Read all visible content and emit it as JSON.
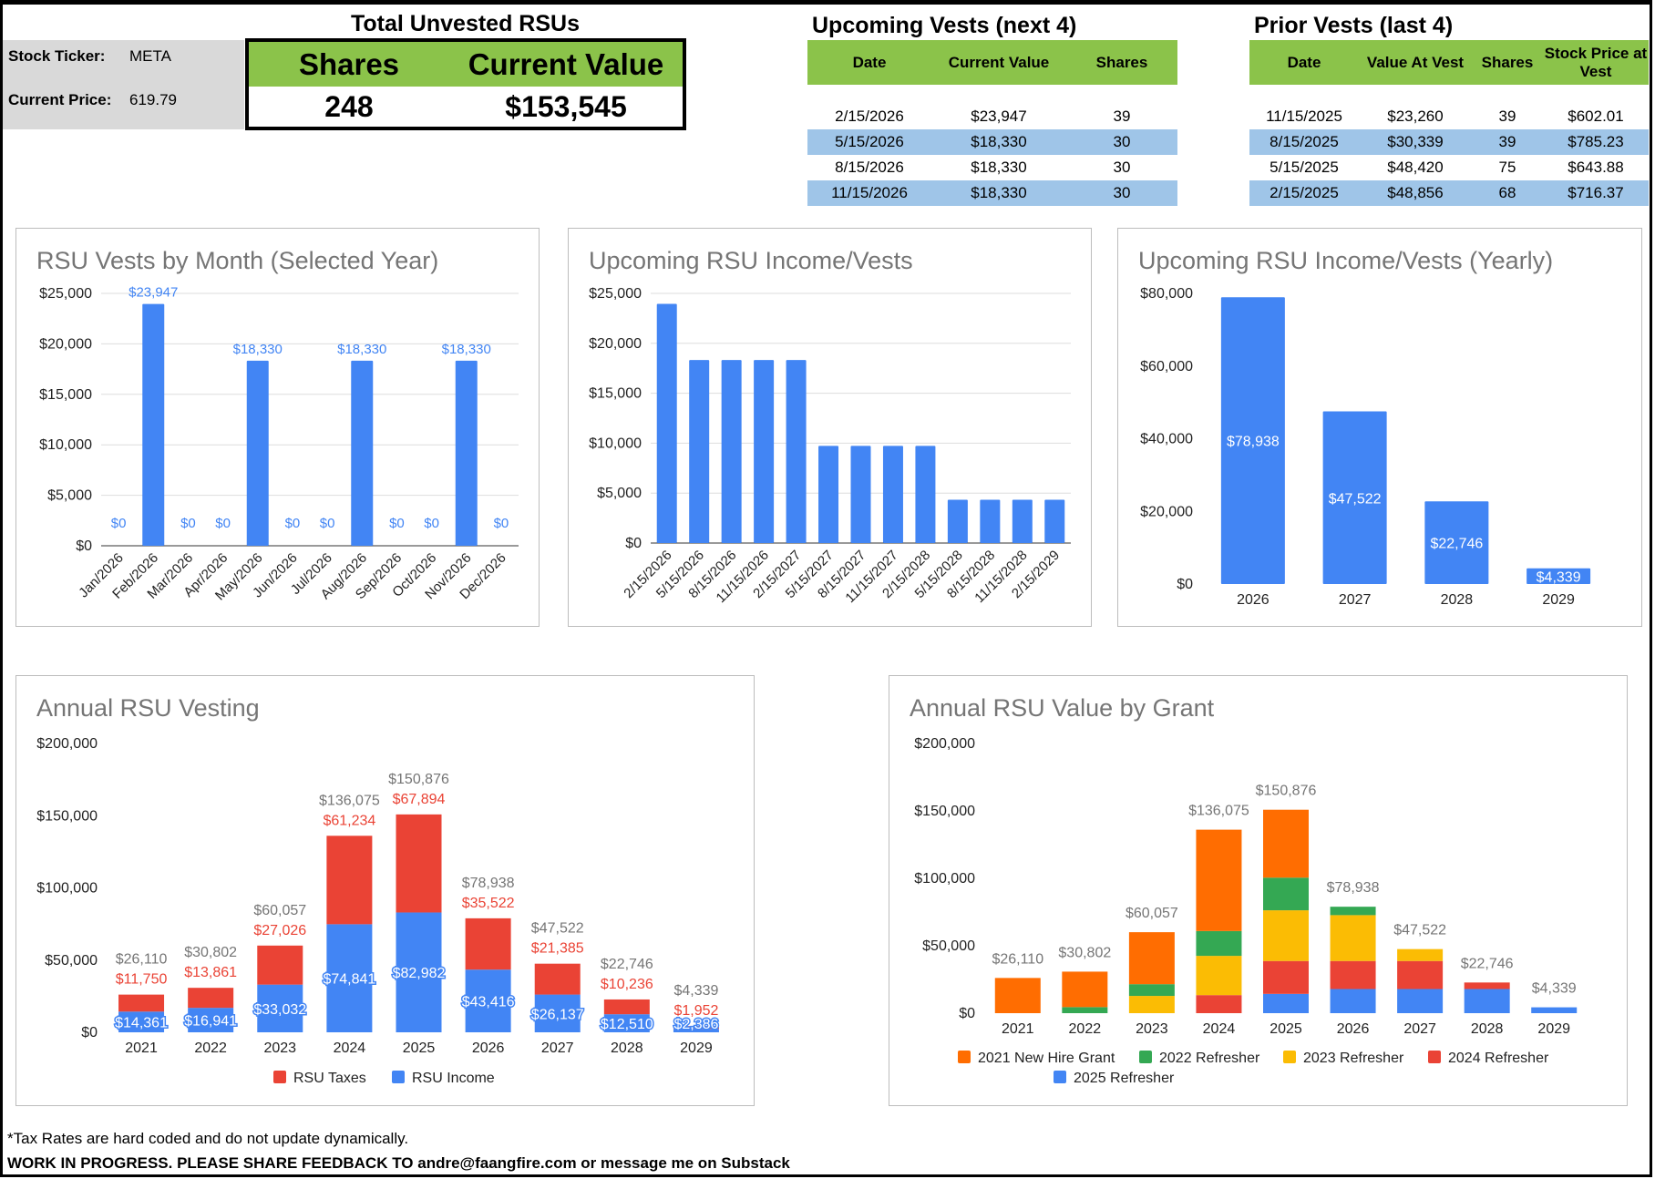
{
  "info": {
    "ticker_label": "Stock Ticker:",
    "ticker": "META",
    "price_label": "Current Price:",
    "price": "619.79"
  },
  "summary": {
    "title": "Total Unvested RSUs",
    "shares_label": "Shares",
    "value_label": "Current Value",
    "shares": "248",
    "value": "$153,545"
  },
  "upcoming": {
    "title": "Upcoming Vests (next 4)",
    "headers": [
      "Date",
      "Current Value",
      "Shares"
    ],
    "rows": [
      [
        "2/15/2026",
        "$23,947",
        "39"
      ],
      [
        "5/15/2026",
        "$18,330",
        "30"
      ],
      [
        "8/15/2026",
        "$18,330",
        "30"
      ],
      [
        "11/15/2026",
        "$18,330",
        "30"
      ]
    ]
  },
  "prior": {
    "title": "Prior Vests (last 4)",
    "headers": [
      "Date",
      "Value At Vest",
      "Shares",
      "Stock Price at Vest"
    ],
    "rows": [
      [
        "11/15/2025",
        "$23,260",
        "39",
        "$602.01"
      ],
      [
        "8/15/2025",
        "$30,339",
        "39",
        "$785.23"
      ],
      [
        "5/15/2025",
        "$48,420",
        "75",
        "$643.88"
      ],
      [
        "2/15/2025",
        "$48,856",
        "68",
        "$716.37"
      ]
    ]
  },
  "chart_data": [
    {
      "id": "monthly",
      "type": "bar",
      "title": "RSU Vests by Month (Selected Year)",
      "ylim": [
        0,
        25000
      ],
      "yticks": [
        "$0",
        "$5,000",
        "$10,000",
        "$15,000",
        "$20,000",
        "$25,000"
      ],
      "categories": [
        "Jan/2026",
        "Feb/2026",
        "Mar/2026",
        "Apr/2026",
        "May/2026",
        "Jun/2026",
        "Jul/2026",
        "Aug/2026",
        "Sep/2026",
        "Oct/2026",
        "Nov/2026",
        "Dec/2026"
      ],
      "values": [
        0,
        23947,
        0,
        0,
        18330,
        0,
        0,
        18330,
        0,
        0,
        18330,
        0
      ],
      "labels": [
        "$0",
        "$23,947",
        "$0",
        "$0",
        "$18,330",
        "$0",
        "$0",
        "$18,330",
        "$0",
        "$0",
        "$18,330",
        "$0"
      ],
      "grid": true,
      "color": "#4285f4"
    },
    {
      "id": "upcoming",
      "type": "bar",
      "title": "Upcoming RSU Income/Vests",
      "ylim": [
        0,
        25000
      ],
      "yticks": [
        "$0",
        "$5,000",
        "$10,000",
        "$15,000",
        "$20,000",
        "$25,000"
      ],
      "categories": [
        "2/15/2026",
        "5/15/2026",
        "8/15/2026",
        "11/15/2026",
        "2/15/2027",
        "5/15/2027",
        "8/15/2027",
        "11/15/2027",
        "2/15/2028",
        "5/15/2028",
        "8/15/2028",
        "11/15/2028",
        "2/15/2029"
      ],
      "values": [
        23947,
        18330,
        18330,
        18330,
        18330,
        9731,
        9731,
        9731,
        9731,
        4338,
        4338,
        4338,
        4339
      ],
      "grid": true,
      "color": "#4285f4"
    },
    {
      "id": "yearly",
      "type": "bar",
      "title": "Upcoming RSU Income/Vests (Yearly)",
      "ylim": [
        0,
        80000
      ],
      "yticks": [
        "$0",
        "$20,000",
        "$40,000",
        "$60,000",
        "$80,000"
      ],
      "categories": [
        "2026",
        "2027",
        "2028",
        "2029"
      ],
      "values": [
        78938,
        47522,
        22746,
        4339
      ],
      "labels": [
        "$78,938",
        "$47,522",
        "$22,746",
        "$4,339"
      ],
      "grid": false,
      "color": "#4285f4"
    },
    {
      "id": "annual",
      "type": "bar",
      "title": "Annual RSU Vesting",
      "ylim": [
        0,
        200000
      ],
      "yticks": [
        "$0",
        "$50,000",
        "$100,000",
        "$150,000",
        "$200,000"
      ],
      "categories": [
        "2021",
        "2022",
        "2023",
        "2024",
        "2025",
        "2026",
        "2027",
        "2028",
        "2029"
      ],
      "series": [
        {
          "name": "RSU Income",
          "color": "#4285f4",
          "values": [
            14361,
            16941,
            33032,
            74841,
            82982,
            43416,
            26137,
            12510,
            2386
          ],
          "labels": [
            "$14,361",
            "$16,941",
            "$33,032",
            "$74,841",
            "$82,982",
            "$43,416",
            "$26,137",
            "$12,510",
            "$2,386"
          ]
        },
        {
          "name": "RSU Taxes",
          "color": "#ea4335",
          "values": [
            11750,
            13861,
            27026,
            61234,
            67894,
            35522,
            21385,
            10236,
            1952
          ],
          "labels": [
            "$11,750",
            "$13,861",
            "$27,026",
            "$61,234",
            "$67,894",
            "$35,522",
            "$21,385",
            "$10,236",
            "$1,952"
          ]
        }
      ],
      "totals": [
        "$26,110",
        "$30,802",
        "$60,057",
        "$136,075",
        "$150,876",
        "$78,938",
        "$47,522",
        "$22,746",
        "$4,339"
      ],
      "legend": [
        "RSU Taxes",
        "RSU Income"
      ],
      "legend_position": "bottom"
    },
    {
      "id": "grant",
      "type": "bar",
      "title": "Annual RSU Value by Grant",
      "ylim": [
        0,
        200000
      ],
      "yticks": [
        "$0",
        "$50,000",
        "$100,000",
        "$150,000",
        "$200,000"
      ],
      "categories": [
        "2021",
        "2022",
        "2023",
        "2024",
        "2025",
        "2026",
        "2027",
        "2028",
        "2029"
      ],
      "series": [
        {
          "name": "2025 Refresher",
          "color": "#4285f4",
          "values": [
            0,
            0,
            0,
            0,
            14300,
            17900,
            17900,
            17900,
            4339
          ]
        },
        {
          "name": "2024 Refresher",
          "color": "#ea4335",
          "values": [
            0,
            0,
            0,
            13400,
            24400,
            20800,
            20800,
            4846,
            0
          ]
        },
        {
          "name": "2023 Refresher",
          "color": "#fbbc04",
          "values": [
            0,
            0,
            12800,
            29100,
            37600,
            34000,
            8822,
            0,
            0
          ]
        },
        {
          "name": "2022 Refresher",
          "color": "#34a853",
          "values": [
            0,
            4500,
            8700,
            18400,
            24200,
            6238,
            0,
            0,
            0
          ]
        },
        {
          "name": "2021 New Hire Grant",
          "color": "#ff6d01",
          "values": [
            26110,
            26302,
            38557,
            75175,
            50376,
            0,
            0,
            0,
            0
          ]
        }
      ],
      "totals": [
        "$26,110",
        "$30,802",
        "$60,057",
        "$136,075",
        "$150,876",
        "$78,938",
        "$47,522",
        "$22,746",
        "$4,339"
      ],
      "legend": [
        "2021 New Hire Grant",
        "2022 Refresher",
        "2023 Refresher",
        "2024 Refresher",
        "2025 Refresher"
      ],
      "legend_position": "bottom"
    }
  ],
  "footer": {
    "note": "*Tax Rates are hard coded and do not update dynamically.",
    "feedback": "WORK IN PROGRESS. PLEASE SHARE FEEDBACK TO andre@faangfire.com or message me on Substack"
  }
}
